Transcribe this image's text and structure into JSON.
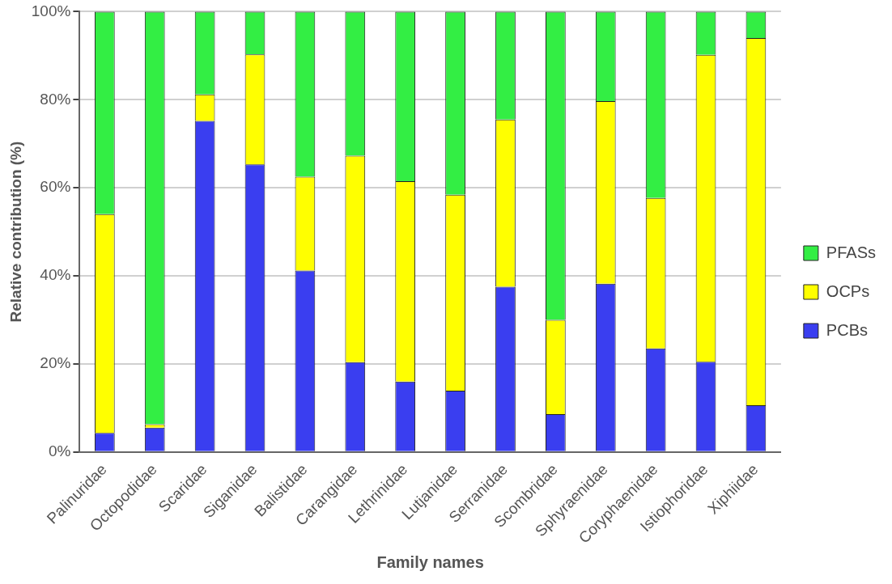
{
  "chart_data": {
    "type": "bar",
    "stacked": true,
    "xlabel": "Family names",
    "ylabel": "Relative contribution (%)",
    "categories": [
      "Palinuridae",
      "Octopodidae",
      "Scaridae",
      "Siganidae",
      "Balistidae",
      "Carangidae",
      "Lethrinidae",
      "Lutjanidae",
      "Serranidae",
      "Scombridae",
      "Sphyraenidae",
      "Coryphaenidae",
      "Istiophoridae",
      "Xiphiidae"
    ],
    "series": [
      {
        "name": "PCBs",
        "color": "#3a3ef0",
        "values": [
          4.3,
          5.5,
          75.2,
          65.3,
          41.2,
          20.4,
          16,
          13.9,
          37.5,
          8.6,
          38.2,
          23.5,
          20.5,
          10.6
        ]
      },
      {
        "name": "OCPs",
        "color": "#ffff00",
        "values": [
          49.7,
          0.8,
          6,
          25,
          21.3,
          46.9,
          45.5,
          44.5,
          38,
          21.4,
          41.5,
          34.2,
          69.7,
          83.4
        ]
      },
      {
        "name": "PFASs",
        "color": "#33ee44",
        "values": [
          46,
          93.7,
          18.8,
          9.7,
          37.5,
          32.7,
          38.5,
          41.6,
          24.5,
          70,
          20.3,
          42.3,
          9.8,
          6
        ]
      }
    ],
    "ylim": [
      0,
      100
    ],
    "yticks": [
      {
        "value": 0,
        "label": "0%"
      },
      {
        "value": 20,
        "label": "20%"
      },
      {
        "value": 40,
        "label": "40%"
      },
      {
        "value": 60,
        "label": "60%"
      },
      {
        "value": 80,
        "label": "80%"
      },
      {
        "value": 100,
        "label": "100%"
      }
    ],
    "grid": "y",
    "legend": "right"
  }
}
